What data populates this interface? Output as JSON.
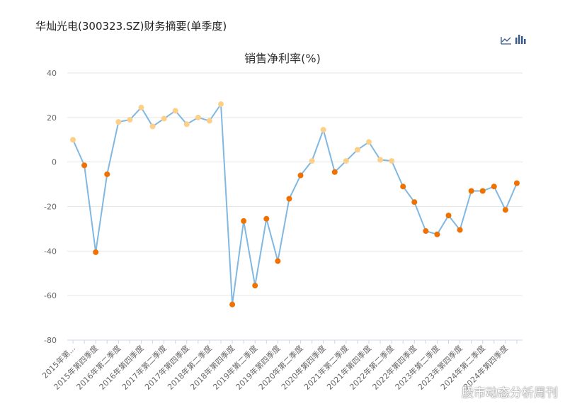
{
  "header": {
    "title": "华灿光电(300323.SZ)财务摘要(单季度)"
  },
  "footer": {
    "watermark": "股市动态分析周刊"
  },
  "chart_data": {
    "type": "line",
    "title": "销售净利率(%)",
    "categories": [
      "2015年第...",
      null,
      "2015年第四季度",
      null,
      "2016年第二季度",
      null,
      "2016年第四季度",
      null,
      "2017年第二季度",
      null,
      "2017年第四季度",
      null,
      "2018年第二季度",
      null,
      "2018年第四季度",
      null,
      "2019年第二季度",
      null,
      "2019年第四季度",
      null,
      "2020年第二季度",
      null,
      "2020年第四季度",
      null,
      "2021年第二季度",
      null,
      "2021年第四季度",
      null,
      "2022年第二季度",
      null,
      "2022年第四季度",
      null,
      "2023年第二季度",
      null,
      "2023年第四季度",
      null,
      "2024年第二季度",
      null,
      "2024年第四季度",
      null
    ],
    "values": [
      10,
      -1.5,
      -40.5,
      -5.5,
      18,
      19,
      24.5,
      16,
      19.5,
      23,
      17,
      20,
      18.5,
      26,
      -64,
      -26.5,
      -55.5,
      -25.5,
      -44.5,
      -16.5,
      -6,
      0.5,
      14.5,
      -4.5,
      0.5,
      5.5,
      9,
      1,
      0.5,
      -11,
      -18,
      -31,
      -32.5,
      -24,
      -30.5,
      -13,
      -13,
      -11,
      -21.5,
      -9.5
    ],
    "color": "#80b8e2",
    "positive_color": "#fdd08a",
    "negative_color": "#f07000",
    "ylim": [
      -80,
      40
    ],
    "yticks": [
      -80,
      -60,
      -40,
      -20,
      0,
      20,
      40
    ],
    "grid": true
  }
}
